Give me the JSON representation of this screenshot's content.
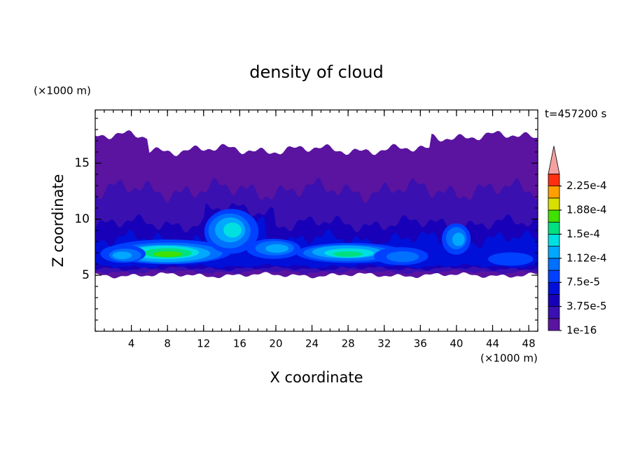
{
  "chart_data": {
    "type": "contour",
    "title": "density of cloud",
    "x_label": "X coordinate",
    "y_label": "Z coordinate",
    "x_unit": "(×1000 m)",
    "y_unit": "(×1000 m)",
    "annotation": "t=457200 s",
    "xlim": [
      0,
      49
    ],
    "ylim": [
      0,
      19.75
    ],
    "xticks": [
      4,
      8,
      12,
      16,
      20,
      24,
      28,
      32,
      36,
      40,
      44,
      48
    ],
    "yticks": [
      5,
      10,
      15
    ],
    "colorbar": {
      "levels": [
        1e-16,
        1.875e-05,
        3.75e-05,
        5.625e-05,
        7.5e-05,
        9.375e-05,
        0.0001125,
        0.00013125,
        0.00015,
        0.00016875,
        0.0001875,
        0.00020625,
        0.000225
      ],
      "colors": [
        "#5a14a0",
        "#3a10b0",
        "#1800b8",
        "#0010d8",
        "#0040ff",
        "#0070ff",
        "#00a8ff",
        "#00e0e0",
        "#00e080",
        "#40e000",
        "#d8e000",
        "#ffa000",
        "#ff3010"
      ],
      "extend_color": "#f4a0a0",
      "ticks": [
        {
          "value": 1e-16,
          "label": "1e-16"
        },
        {
          "value": 3.75e-05,
          "label": "3.75e-5"
        },
        {
          "value": 7.5e-05,
          "label": "7.5e-5"
        },
        {
          "value": 0.0001125,
          "label": "1.12e-4"
        },
        {
          "value": 0.00015,
          "label": "1.5e-4"
        },
        {
          "value": 0.0001875,
          "label": "1.88e-4"
        },
        {
          "value": 0.000225,
          "label": "2.25e-4"
        }
      ]
    }
  }
}
